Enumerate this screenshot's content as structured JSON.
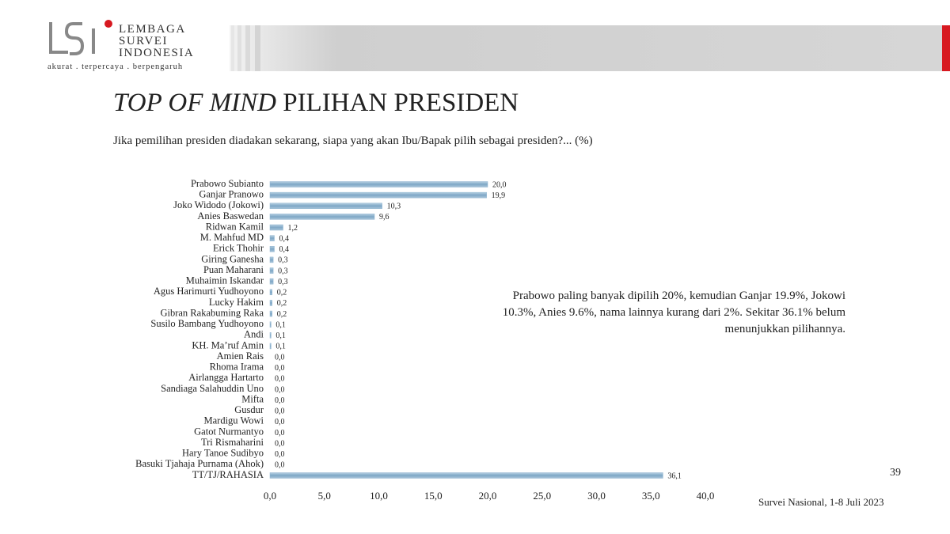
{
  "header": {
    "logo": [
      "LEMBAGA",
      "SURVEI",
      "INDONESIA"
    ],
    "tagline": "akurat . terpercaya . berpengaruh"
  },
  "title": {
    "emphasis": "TOP OF MIND",
    "text": "PILIHAN  PRESIDEN"
  },
  "subtitle": "Jika pemilihan  presiden diadakan sekarang, siapa yang akan Ibu/Bapak pilih  sebagai presiden?... (%)",
  "note": [
    "Prabowo paling banyak dipilih 20%, kemudian Ganjar 19.9%, Jokowi",
    "10.3%, Anies 9.6%, nama lainnya kurang dari 2%. Sekitar 36.1% belum",
    "menunjukkan pilihannya."
  ],
  "page_number": "39",
  "footer": "Survei Nasional,  1-8 Juli 2023",
  "chart_data": {
    "type": "hbar",
    "color": "#8fb4d0",
    "categories": [
      "Prabowo Subianto",
      "Ganjar Pranowo",
      "Joko Widodo (Jokowi)",
      "Anies Baswedan",
      "Ridwan Kamil",
      "M. Mahfud MD",
      "Erick Thohir",
      "Giring Ganesha",
      "Puan Maharani",
      "Muhaimin Iskandar",
      "Agus Harimurti Yudhoyono",
      "Lucky Hakim",
      "Gibran Rakabuming Raka",
      "Susilo Bambang Yudhoyono",
      "Andi",
      "KH. Ma’ruf Amin",
      "Amien Rais",
      "Rhoma Irama",
      "Airlangga Hartarto",
      "Sandiaga Salahuddin Uno",
      "Mifta",
      "Gusdur",
      "Mardigu Wowi",
      "Gatot Nurmantyo",
      "Tri Rismaharini",
      "Hary Tanoe Sudibyo",
      "Basuki Tjahaja Purnama (Ahok)",
      "TT/TJ/RAHASIA"
    ],
    "values": [
      20.0,
      19.9,
      10.3,
      9.6,
      1.2,
      0.4,
      0.4,
      0.3,
      0.3,
      0.3,
      0.2,
      0.2,
      0.2,
      0.1,
      0.1,
      0.1,
      0.0,
      0.0,
      0.0,
      0.0,
      0.0,
      0.0,
      0.0,
      0.0,
      0.0,
      0.0,
      0.0,
      36.1
    ],
    "value_labels": [
      "20,0",
      "19,9",
      "10,3",
      "9,6",
      "1,2",
      "0,4",
      "0,4",
      "0,3",
      "0,3",
      "0,3",
      "0,2",
      "0,2",
      "0,2",
      "0,1",
      "0,1",
      "0,1",
      "0,0",
      "0,0",
      "0,0",
      "0,0",
      "0,0",
      "0,0",
      "0,0",
      "0,0",
      "0,0",
      "0,0",
      "0,0",
      "36,1"
    ],
    "xlim": [
      0,
      40
    ],
    "xticks": [
      {
        "value": 0,
        "label": "0,0"
      },
      {
        "value": 5,
        "label": "5,0"
      },
      {
        "value": 10,
        "label": "10,0"
      },
      {
        "value": 15,
        "label": "15,0"
      },
      {
        "value": 20,
        "label": "20,0"
      },
      {
        "value": 25,
        "label": "25,0"
      },
      {
        "value": 30,
        "label": "30,0"
      },
      {
        "value": 35,
        "label": "35,0"
      },
      {
        "value": 40,
        "label": "40,0"
      }
    ]
  }
}
